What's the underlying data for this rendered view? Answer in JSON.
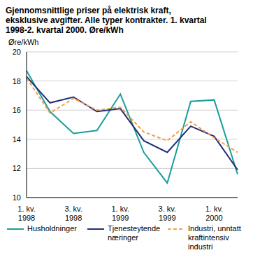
{
  "chart_data": {
    "type": "line",
    "title": "Gjennomsnittlige priser på elektrisk kraft, eksklusive avgifter. Alle typer kontrakter. 1. kvartal 1998-2. kvartal 2000. Øre/kWh",
    "y_label": "Øre/kWh",
    "categories": [
      "1. kv.\n1998",
      null,
      "3. kv.\n1998",
      null,
      "1. kv.\n1999",
      null,
      "3. kv.\n1999",
      null,
      "1. kv.\n2000",
      null
    ],
    "series": [
      {
        "name": "Husholdninger",
        "color": "#1a9e9a",
        "line_style": "solid",
        "values": [
          18.7,
          15.9,
          14.4,
          14.6,
          17.1,
          13.1,
          11.0,
          16.6,
          16.7,
          11.6
        ]
      },
      {
        "name": "Tjenesteytende næringer",
        "color": "#1f2e7a",
        "line_style": "solid",
        "values": [
          18.3,
          16.5,
          16.9,
          15.9,
          16.1,
          13.9,
          13.1,
          14.9,
          14.2,
          11.9
        ]
      },
      {
        "name": "Industri, unntatt kraftintensiv industri",
        "color": "#f5a04a",
        "line_style": "dashed",
        "values": [
          18.2,
          15.8,
          16.8,
          16.0,
          16.2,
          14.5,
          13.9,
          15.2,
          14.1,
          13.1
        ]
      }
    ],
    "ylim": [
      10,
      20
    ],
    "yticks": [
      10,
      12,
      14,
      16,
      18,
      20
    ],
    "grid": true
  }
}
